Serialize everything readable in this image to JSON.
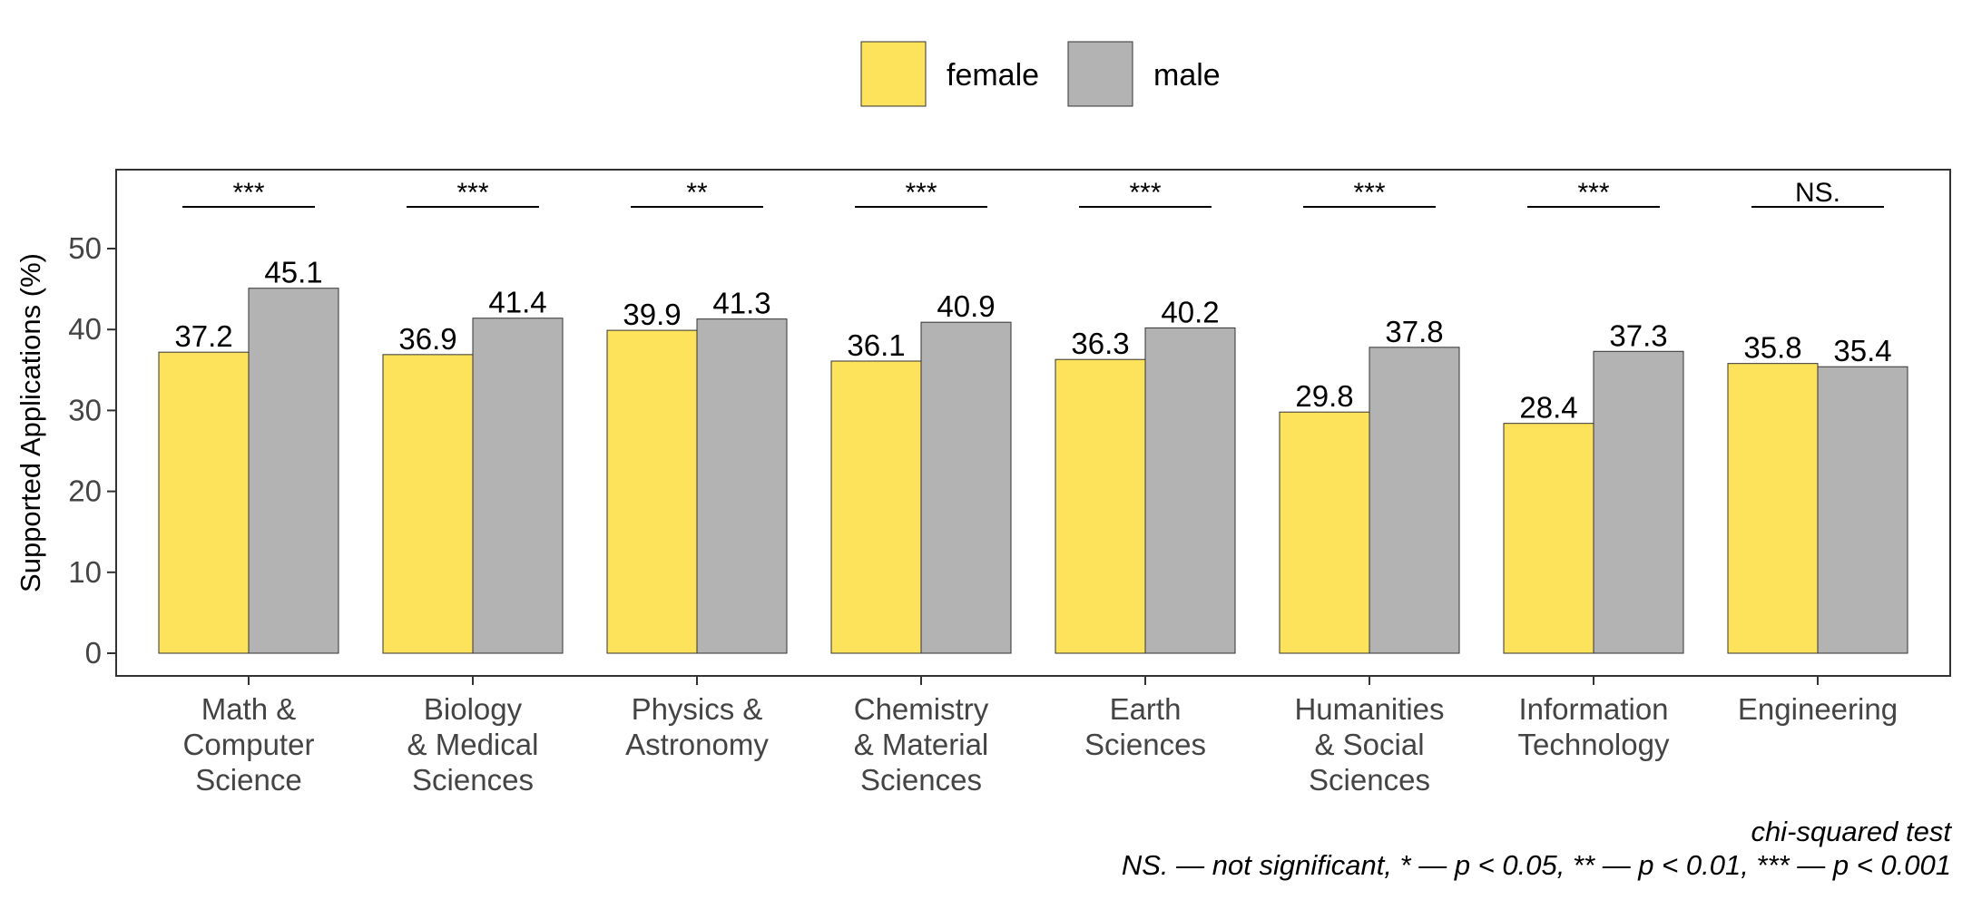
{
  "chart_data": {
    "type": "bar",
    "categories": [
      [
        "Math &",
        "Computer",
        "Science"
      ],
      [
        "Biology",
        "& Medical",
        "Sciences"
      ],
      [
        "Physics &",
        "Astronomy"
      ],
      [
        "Chemistry",
        "& Material",
        "Sciences"
      ],
      [
        "Earth",
        "Sciences"
      ],
      [
        "Humanities",
        "& Social",
        "Sciences"
      ],
      [
        "Information",
        "Technology"
      ],
      [
        "Engineering"
      ]
    ],
    "series": [
      {
        "name": "female",
        "color": "#fde35c",
        "values": [
          37.2,
          36.9,
          39.9,
          36.1,
          36.3,
          29.8,
          28.4,
          35.8
        ]
      },
      {
        "name": "male",
        "color": "#b3b3b3",
        "values": [
          45.1,
          41.4,
          41.3,
          40.9,
          40.2,
          37.8,
          37.3,
          35.4
        ]
      }
    ],
    "significance": [
      "***",
      "***",
      "**",
      "***",
      "***",
      "***",
      "***",
      "NS."
    ],
    "title": "",
    "xlabel": "",
    "ylabel": "Supported Applications (%)",
    "ylim": [
      0,
      58
    ],
    "yticks": [
      0,
      10,
      20,
      30,
      40,
      50
    ],
    "grid": false,
    "legend_position": "top",
    "caption": [
      "chi-squared test",
      "NS. — not significant, * — p < 0.05, ** — p < 0.01, *** — p < 0.001"
    ]
  }
}
